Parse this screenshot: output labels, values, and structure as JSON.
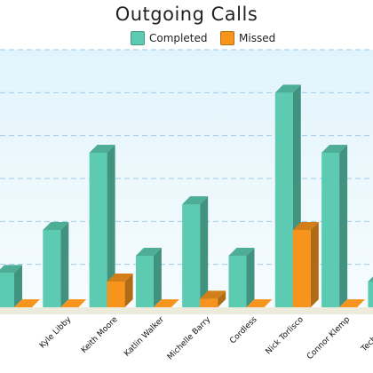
{
  "chart_data": {
    "type": "bar",
    "title": "Outgoing Calls",
    "xlabel": "",
    "ylabel": "",
    "categories": [
      "",
      "Kyle Libby",
      "Keith Moore",
      "Katlin Walker",
      "Michelle Barry",
      "Cordless",
      "Nick Torlisco",
      "Connor Klemp",
      "Tech Bench"
    ],
    "series": [
      {
        "name": "Completed",
        "color": "#5ccbb2",
        "values": [
          4,
          9,
          18,
          6,
          12,
          6,
          25,
          18,
          3
        ]
      },
      {
        "name": "Missed",
        "color": "#f7941d",
        "values": [
          0,
          0,
          3,
          0,
          1,
          0,
          9,
          0,
          0
        ]
      }
    ],
    "ylim": [
      0,
      30
    ],
    "grid": true,
    "legend": "top-center"
  },
  "colors": {
    "plot_background_top": "#e2f4fb",
    "plot_background_bottom": "#f6fcfe",
    "gridline": "#9ecbe8",
    "floor": "#ecebdc"
  }
}
